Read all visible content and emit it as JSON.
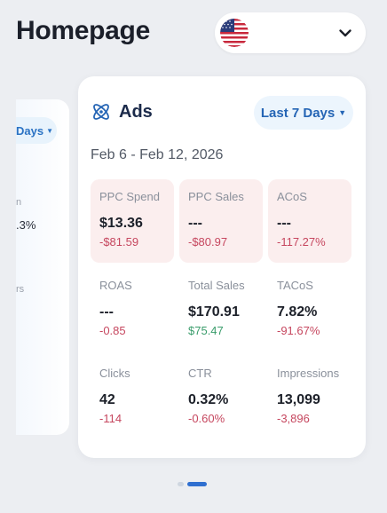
{
  "header": {
    "title": "Homepage",
    "country": "united-states-flag-icon"
  },
  "prev_card": {
    "range_fragment": "Days",
    "frag1": "n",
    "frag2": ".3%",
    "frag3": "rs"
  },
  "ads_card": {
    "icon": "ads-atom-icon",
    "title": "Ads",
    "range_label": "Last 7 Days",
    "date_range": "Feb 6 - Feb 12, 2026",
    "metrics": [
      {
        "label": "PPC Spend",
        "value": "$13.36",
        "delta": "-$81.59",
        "delta_tone": "neg",
        "highlight": true
      },
      {
        "label": "PPC Sales",
        "value": "---",
        "delta": "-$80.97",
        "delta_tone": "neg",
        "highlight": true
      },
      {
        "label": "ACoS",
        "value": "---",
        "delta": "-117.27%",
        "delta_tone": "neg",
        "highlight": true
      },
      {
        "label": "ROAS",
        "value": "---",
        "delta": "-0.85",
        "delta_tone": "neg",
        "highlight": false
      },
      {
        "label": "Total Sales",
        "value": "$170.91",
        "delta": "$75.47",
        "delta_tone": "pos",
        "highlight": false
      },
      {
        "label": "TACoS",
        "value": "7.82%",
        "delta": "-91.67%",
        "delta_tone": "neg",
        "highlight": false
      },
      {
        "label": "Clicks",
        "value": "42",
        "delta": "-114",
        "delta_tone": "neg",
        "highlight": false
      },
      {
        "label": "CTR",
        "value": "0.32%",
        "delta": "-0.60%",
        "delta_tone": "neg",
        "highlight": false
      },
      {
        "label": "Impressions",
        "value": "13,099",
        "delta": "-3,896",
        "delta_tone": "neg",
        "highlight": false
      }
    ]
  },
  "colors": {
    "accent": "#2565b5",
    "negative": "#c6475f",
    "positive": "#3a9c6b",
    "highlight_bg": "#fbeeee"
  }
}
